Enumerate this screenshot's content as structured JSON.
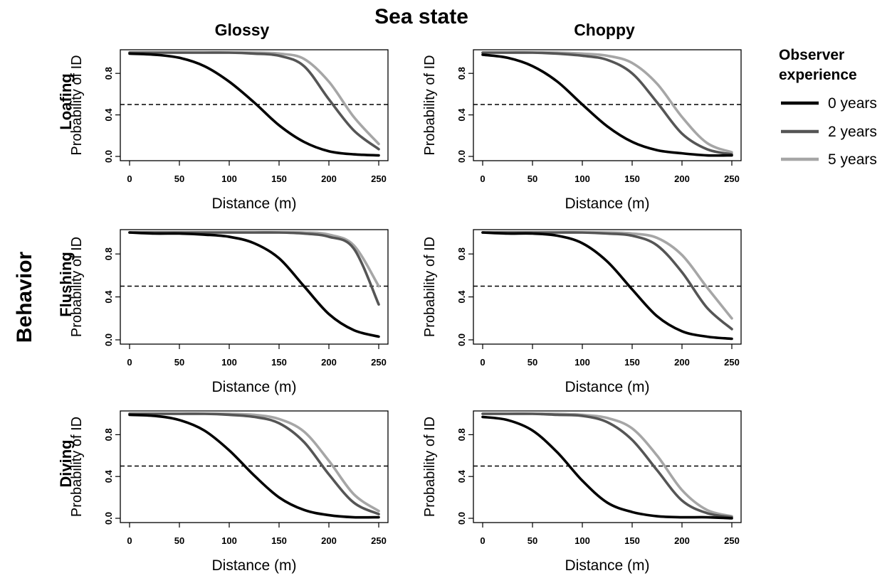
{
  "figure": {
    "title": "Sea state",
    "column_titles": [
      "Glossy",
      "Choppy"
    ],
    "row_group_label": "Behavior",
    "row_titles": [
      "Loafing",
      "Flushing",
      "Diving"
    ],
    "ylabel": "Probability of ID",
    "xlabel": "Distance (m)",
    "x_ticks": [
      "0",
      "50",
      "100",
      "150",
      "200",
      "250"
    ],
    "y_ticks": [
      "0.0",
      "0.4",
      "0.8"
    ],
    "legend": {
      "title_line1": "Observer",
      "title_line2": "experience",
      "items": [
        {
          "label": "0 years",
          "color": "#000000"
        },
        {
          "label": "2 years",
          "color": "#555555"
        },
        {
          "label": "5 years",
          "color": "#a6a6a6"
        }
      ]
    },
    "reference_line": 0.5
  },
  "chart_data": [
    {
      "type": "line",
      "row": "Loafing",
      "col": "Glossy",
      "xlim": [
        0,
        250
      ],
      "ylim": [
        0,
        1
      ],
      "hline": 0.5,
      "series": [
        {
          "name": "0 years",
          "color": "#000000",
          "x": [
            0,
            25,
            50,
            75,
            100,
            125,
            150,
            175,
            200,
            225,
            250
          ],
          "y": [
            0.99,
            0.98,
            0.95,
            0.87,
            0.72,
            0.52,
            0.3,
            0.14,
            0.05,
            0.02,
            0.01
          ]
        },
        {
          "name": "2 years",
          "color": "#555555",
          "x": [
            0,
            25,
            50,
            75,
            100,
            125,
            150,
            175,
            200,
            225,
            250
          ],
          "y": [
            1.0,
            1.0,
            1.0,
            1.0,
            1.0,
            0.99,
            0.97,
            0.87,
            0.55,
            0.25,
            0.07
          ]
        },
        {
          "name": "5 years",
          "color": "#a6a6a6",
          "x": [
            0,
            25,
            50,
            75,
            100,
            125,
            150,
            175,
            200,
            225,
            250
          ],
          "y": [
            1.0,
            1.0,
            1.0,
            1.0,
            1.0,
            1.0,
            0.99,
            0.94,
            0.72,
            0.38,
            0.12
          ]
        }
      ]
    },
    {
      "type": "line",
      "row": "Loafing",
      "col": "Choppy",
      "xlim": [
        0,
        250
      ],
      "ylim": [
        0,
        1
      ],
      "hline": 0.5,
      "series": [
        {
          "name": "0 years",
          "color": "#000000",
          "x": [
            0,
            25,
            50,
            75,
            100,
            125,
            150,
            175,
            200,
            225,
            250
          ],
          "y": [
            0.98,
            0.95,
            0.87,
            0.72,
            0.5,
            0.29,
            0.14,
            0.06,
            0.03,
            0.01,
            0.01
          ]
        },
        {
          "name": "2 years",
          "color": "#555555",
          "x": [
            0,
            25,
            50,
            75,
            100,
            125,
            150,
            175,
            200,
            225,
            250
          ],
          "y": [
            1.0,
            1.0,
            1.0,
            0.99,
            0.97,
            0.93,
            0.8,
            0.52,
            0.22,
            0.07,
            0.02
          ]
        },
        {
          "name": "5 years",
          "color": "#a6a6a6",
          "x": [
            0,
            25,
            50,
            75,
            100,
            125,
            150,
            175,
            200,
            225,
            250
          ],
          "y": [
            1.0,
            1.0,
            1.0,
            1.0,
            0.99,
            0.97,
            0.9,
            0.7,
            0.38,
            0.13,
            0.04
          ]
        }
      ]
    },
    {
      "type": "line",
      "row": "Flushing",
      "col": "Glossy",
      "xlim": [
        0,
        250
      ],
      "ylim": [
        0,
        1
      ],
      "hline": 0.5,
      "series": [
        {
          "name": "0 years",
          "color": "#000000",
          "x": [
            0,
            25,
            50,
            75,
            100,
            125,
            150,
            175,
            200,
            225,
            250
          ],
          "y": [
            1.0,
            0.99,
            0.99,
            0.98,
            0.96,
            0.9,
            0.76,
            0.5,
            0.24,
            0.09,
            0.03
          ]
        },
        {
          "name": "2 years",
          "color": "#555555",
          "x": [
            0,
            25,
            50,
            75,
            100,
            125,
            150,
            175,
            200,
            225,
            250
          ],
          "y": [
            1.0,
            1.0,
            1.0,
            1.0,
            1.0,
            1.0,
            1.0,
            0.99,
            0.96,
            0.85,
            0.33
          ]
        },
        {
          "name": "5 years",
          "color": "#a6a6a6",
          "x": [
            0,
            25,
            50,
            75,
            100,
            125,
            150,
            175,
            200,
            225,
            250
          ],
          "y": [
            1.0,
            1.0,
            1.0,
            1.0,
            1.0,
            1.0,
            1.0,
            1.0,
            0.98,
            0.88,
            0.5
          ]
        }
      ]
    },
    {
      "type": "line",
      "row": "Flushing",
      "col": "Choppy",
      "xlim": [
        0,
        250
      ],
      "ylim": [
        0,
        1
      ],
      "hline": 0.5,
      "series": [
        {
          "name": "0 years",
          "color": "#000000",
          "x": [
            0,
            25,
            50,
            75,
            100,
            125,
            150,
            175,
            200,
            225,
            250
          ],
          "y": [
            1.0,
            0.99,
            0.99,
            0.97,
            0.9,
            0.73,
            0.47,
            0.22,
            0.08,
            0.03,
            0.01
          ]
        },
        {
          "name": "2 years",
          "color": "#555555",
          "x": [
            0,
            25,
            50,
            75,
            100,
            125,
            150,
            175,
            200,
            225,
            250
          ],
          "y": [
            1.0,
            1.0,
            1.0,
            1.0,
            1.0,
            0.99,
            0.97,
            0.88,
            0.63,
            0.3,
            0.1
          ]
        },
        {
          "name": "5 years",
          "color": "#a6a6a6",
          "x": [
            0,
            25,
            50,
            75,
            100,
            125,
            150,
            175,
            200,
            225,
            250
          ],
          "y": [
            1.0,
            1.0,
            1.0,
            1.0,
            1.0,
            1.0,
            0.99,
            0.95,
            0.79,
            0.49,
            0.2
          ]
        }
      ]
    },
    {
      "type": "line",
      "row": "Diving",
      "col": "Glossy",
      "xlim": [
        0,
        250
      ],
      "ylim": [
        0,
        1
      ],
      "hline": 0.5,
      "series": [
        {
          "name": "0 years",
          "color": "#000000",
          "x": [
            0,
            25,
            50,
            75,
            100,
            125,
            150,
            175,
            200,
            225,
            250
          ],
          "y": [
            0.99,
            0.98,
            0.94,
            0.84,
            0.65,
            0.41,
            0.2,
            0.08,
            0.03,
            0.01,
            0.01
          ]
        },
        {
          "name": "2 years",
          "color": "#555555",
          "x": [
            0,
            25,
            50,
            75,
            100,
            125,
            150,
            175,
            200,
            225,
            250
          ],
          "y": [
            1.0,
            1.0,
            1.0,
            1.0,
            0.99,
            0.97,
            0.91,
            0.73,
            0.42,
            0.15,
            0.04
          ]
        },
        {
          "name": "5 years",
          "color": "#a6a6a6",
          "x": [
            0,
            25,
            50,
            75,
            100,
            125,
            150,
            175,
            200,
            225,
            250
          ],
          "y": [
            1.0,
            1.0,
            1.0,
            1.0,
            1.0,
            0.99,
            0.95,
            0.83,
            0.55,
            0.23,
            0.07
          ]
        }
      ]
    },
    {
      "type": "line",
      "row": "Diving",
      "col": "Choppy",
      "xlim": [
        0,
        250
      ],
      "ylim": [
        0,
        1
      ],
      "hline": 0.5,
      "series": [
        {
          "name": "0 years",
          "color": "#000000",
          "x": [
            0,
            25,
            50,
            75,
            100,
            125,
            150,
            175,
            200,
            225,
            250
          ],
          "y": [
            0.97,
            0.94,
            0.84,
            0.63,
            0.36,
            0.15,
            0.06,
            0.02,
            0.01,
            0.01,
            0.0
          ]
        },
        {
          "name": "2 years",
          "color": "#555555",
          "x": [
            0,
            25,
            50,
            75,
            100,
            125,
            150,
            175,
            200,
            225,
            250
          ],
          "y": [
            1.0,
            1.0,
            1.0,
            0.99,
            0.98,
            0.92,
            0.75,
            0.46,
            0.17,
            0.05,
            0.01
          ]
        },
        {
          "name": "5 years",
          "color": "#a6a6a6",
          "x": [
            0,
            25,
            50,
            75,
            100,
            125,
            150,
            175,
            200,
            225,
            250
          ],
          "y": [
            1.0,
            1.0,
            1.0,
            1.0,
            0.99,
            0.96,
            0.86,
            0.6,
            0.27,
            0.08,
            0.02
          ]
        }
      ]
    }
  ]
}
